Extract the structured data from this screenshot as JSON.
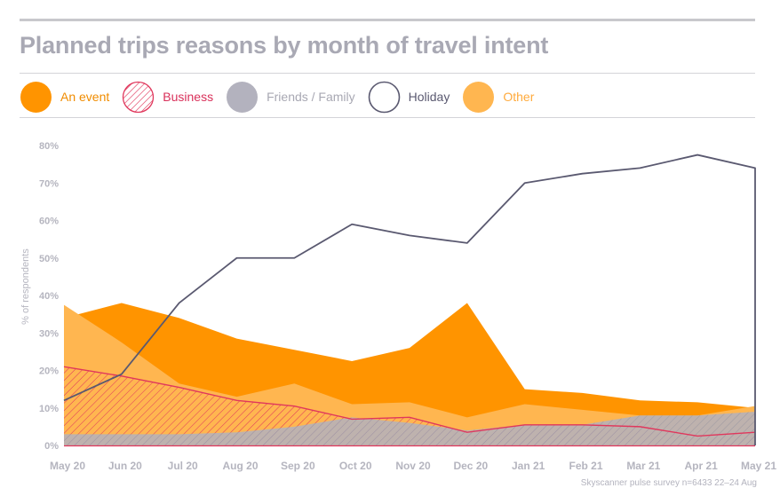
{
  "header": {
    "title": "Planned trips reasons by month of travel intent"
  },
  "legend": [
    {
      "label": "An event",
      "color": "#ff9400",
      "label_color": "#f08c00",
      "swatch": "filled"
    },
    {
      "label": "Business",
      "color": "#e0375c",
      "label_color": "#d9305a",
      "swatch": "hatched"
    },
    {
      "label": "Friends / Family",
      "color": "#b3b2be",
      "label_color": "#a8a8b3",
      "swatch": "filled"
    },
    {
      "label": "Holiday",
      "color": "#5a5970",
      "label_color": "#5a5970",
      "swatch": "outline"
    },
    {
      "label": "Other",
      "color": "#ffb650",
      "label_color": "#ffaa3c",
      "swatch": "filled"
    }
  ],
  "footer": {
    "source": "Skyscanner pulse survey n=6433 22–24 Aug"
  },
  "chart_data": {
    "type": "area",
    "title": "Planned trips reasons by month of travel intent",
    "xlabel": "",
    "ylabel": "% of respondents",
    "ylim": [
      0,
      80
    ],
    "yticks": [
      "0%",
      "10%",
      "20%",
      "30%",
      "40%",
      "50%",
      "60%",
      "70%",
      "80%"
    ],
    "grid": false,
    "legend_position": "top",
    "categories": [
      "May 20",
      "Jun 20",
      "Jul 20",
      "Aug 20",
      "Sep 20",
      "Oct 20",
      "Nov 20",
      "Dec 20",
      "Jan 21",
      "Feb 21",
      "Mar 21",
      "Apr 21",
      "May 21"
    ],
    "series": [
      {
        "name": "An event",
        "values": [
          34,
          38,
          34,
          28.5,
          25.5,
          22.5,
          26,
          38,
          15,
          14,
          12,
          11.5,
          10
        ]
      },
      {
        "name": "Other",
        "values": [
          37.5,
          27.5,
          16.5,
          13,
          16.5,
          11,
          11.5,
          7.5,
          11,
          9.5,
          8,
          8,
          10.5
        ]
      },
      {
        "name": "Business",
        "values": [
          21,
          18.5,
          15.5,
          12,
          10.5,
          7,
          7.5,
          3.5,
          5.5,
          5.5,
          5,
          2.5,
          3.5
        ]
      },
      {
        "name": "Friends / Family",
        "values": [
          3,
          3,
          3,
          3.5,
          5,
          7.5,
          6,
          4,
          5.5,
          5.5,
          8,
          8,
          9
        ]
      },
      {
        "name": "Holiday",
        "values": [
          12,
          19,
          38,
          50,
          50,
          59,
          56,
          54,
          70,
          72.5,
          74,
          77.5,
          74
        ]
      }
    ]
  }
}
